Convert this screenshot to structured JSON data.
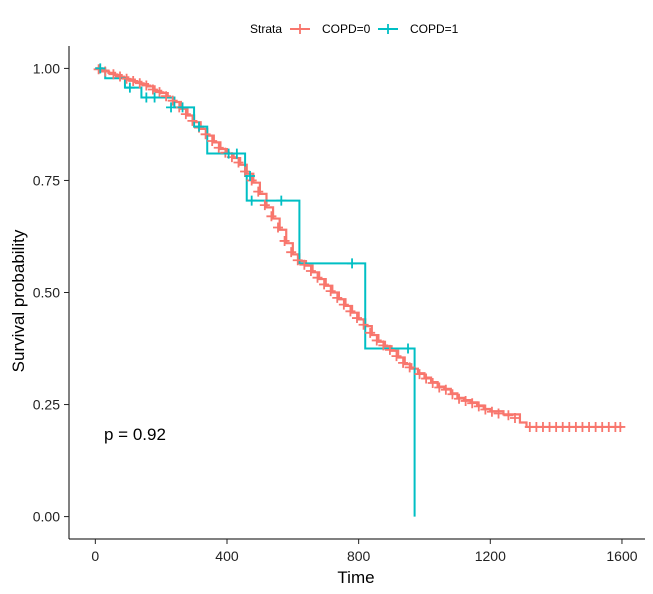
{
  "chart_data": {
    "type": "line",
    "title": "",
    "xlabel": "Time",
    "ylabel": "Survival probability",
    "xlim": [
      -80,
      1670
    ],
    "ylim": [
      -0.05,
      1.05
    ],
    "xticks": [
      0,
      400,
      800,
      1200,
      1600
    ],
    "yticks": [
      0.0,
      0.25,
      0.5,
      0.75,
      1.0
    ],
    "xtick_labels": [
      "0",
      "400",
      "800",
      "1200",
      "1600"
    ],
    "ytick_labels": [
      "0.00",
      "0.25",
      "0.50",
      "0.75",
      "1.00"
    ],
    "grid": false,
    "legend": {
      "position": "top",
      "title": "Strata",
      "entries": [
        "COPD=0",
        "COPD=1"
      ]
    },
    "annotation": {
      "text": "p = 0.92",
      "x": 50,
      "y": 0.195
    },
    "series": [
      {
        "name": "COPD=0",
        "color": "#F8766D",
        "step": true,
        "points": [
          [
            0,
            1.0
          ],
          [
            20,
            0.995
          ],
          [
            40,
            0.99
          ],
          [
            60,
            0.985
          ],
          [
            80,
            0.98
          ],
          [
            100,
            0.975
          ],
          [
            120,
            0.97
          ],
          [
            140,
            0.965
          ],
          [
            160,
            0.96
          ],
          [
            180,
            0.95
          ],
          [
            200,
            0.945
          ],
          [
            220,
            0.935
          ],
          [
            240,
            0.925
          ],
          [
            260,
            0.91
          ],
          [
            280,
            0.895
          ],
          [
            300,
            0.88
          ],
          [
            320,
            0.865
          ],
          [
            340,
            0.85
          ],
          [
            360,
            0.835
          ],
          [
            380,
            0.82
          ],
          [
            400,
            0.81
          ],
          [
            420,
            0.8
          ],
          [
            440,
            0.785
          ],
          [
            460,
            0.765
          ],
          [
            480,
            0.745
          ],
          [
            500,
            0.72
          ],
          [
            520,
            0.69
          ],
          [
            540,
            0.665
          ],
          [
            560,
            0.64
          ],
          [
            580,
            0.61
          ],
          [
            600,
            0.585
          ],
          [
            620,
            0.57
          ],
          [
            640,
            0.56
          ],
          [
            660,
            0.545
          ],
          [
            680,
            0.53
          ],
          [
            700,
            0.515
          ],
          [
            720,
            0.5
          ],
          [
            740,
            0.485
          ],
          [
            760,
            0.47
          ],
          [
            780,
            0.455
          ],
          [
            800,
            0.44
          ],
          [
            820,
            0.425
          ],
          [
            840,
            0.405
          ],
          [
            860,
            0.39
          ],
          [
            880,
            0.38
          ],
          [
            900,
            0.37
          ],
          [
            920,
            0.355
          ],
          [
            940,
            0.34
          ],
          [
            960,
            0.33
          ],
          [
            980,
            0.32
          ],
          [
            1000,
            0.31
          ],
          [
            1020,
            0.3
          ],
          [
            1040,
            0.29
          ],
          [
            1060,
            0.285
          ],
          [
            1080,
            0.275
          ],
          [
            1100,
            0.265
          ],
          [
            1120,
            0.26
          ],
          [
            1140,
            0.255
          ],
          [
            1160,
            0.248
          ],
          [
            1180,
            0.24
          ],
          [
            1200,
            0.235
          ],
          [
            1240,
            0.228
          ],
          [
            1290,
            0.21
          ],
          [
            1310,
            0.2
          ],
          [
            1600,
            0.2
          ]
        ],
        "censors": [
          [
            10,
            0.998
          ],
          [
            30,
            0.993
          ],
          [
            55,
            0.987
          ],
          [
            75,
            0.982
          ],
          [
            95,
            0.977
          ],
          [
            115,
            0.972
          ],
          [
            135,
            0.967
          ],
          [
            155,
            0.962
          ],
          [
            175,
            0.953
          ],
          [
            195,
            0.947
          ],
          [
            215,
            0.938
          ],
          [
            235,
            0.928
          ],
          [
            255,
            0.913
          ],
          [
            275,
            0.898
          ],
          [
            295,
            0.883
          ],
          [
            315,
            0.868
          ],
          [
            335,
            0.853
          ],
          [
            355,
            0.838
          ],
          [
            375,
            0.823
          ],
          [
            395,
            0.812
          ],
          [
            415,
            0.802
          ],
          [
            435,
            0.79
          ],
          [
            455,
            0.77
          ],
          [
            475,
            0.75
          ],
          [
            495,
            0.725
          ],
          [
            515,
            0.695
          ],
          [
            535,
            0.67
          ],
          [
            555,
            0.645
          ],
          [
            575,
            0.615
          ],
          [
            595,
            0.59
          ],
          [
            615,
            0.572
          ],
          [
            635,
            0.562
          ],
          [
            655,
            0.548
          ],
          [
            675,
            0.533
          ],
          [
            695,
            0.518
          ],
          [
            715,
            0.503
          ],
          [
            735,
            0.488
          ],
          [
            755,
            0.473
          ],
          [
            775,
            0.458
          ],
          [
            795,
            0.443
          ],
          [
            815,
            0.428
          ],
          [
            835,
            0.41
          ],
          [
            855,
            0.393
          ],
          [
            875,
            0.382
          ],
          [
            895,
            0.372
          ],
          [
            915,
            0.358
          ],
          [
            935,
            0.343
          ],
          [
            955,
            0.333
          ],
          [
            985,
            0.318
          ],
          [
            1005,
            0.308
          ],
          [
            1025,
            0.298
          ],
          [
            1045,
            0.288
          ],
          [
            1065,
            0.283
          ],
          [
            1085,
            0.273
          ],
          [
            1105,
            0.263
          ],
          [
            1125,
            0.258
          ],
          [
            1145,
            0.253
          ],
          [
            1165,
            0.246
          ],
          [
            1185,
            0.239
          ],
          [
            1205,
            0.234
          ],
          [
            1225,
            0.23
          ],
          [
            1255,
            0.226
          ],
          [
            1275,
            0.22
          ],
          [
            1320,
            0.2
          ],
          [
            1340,
            0.2
          ],
          [
            1360,
            0.2
          ],
          [
            1380,
            0.2
          ],
          [
            1400,
            0.2
          ],
          [
            1420,
            0.2
          ],
          [
            1440,
            0.2
          ],
          [
            1460,
            0.2
          ],
          [
            1480,
            0.2
          ],
          [
            1500,
            0.2
          ],
          [
            1520,
            0.2
          ],
          [
            1540,
            0.2
          ],
          [
            1560,
            0.2
          ],
          [
            1580,
            0.2
          ],
          [
            1595,
            0.2
          ]
        ]
      },
      {
        "name": "COPD=1",
        "color": "#00BFC4",
        "step": true,
        "points": [
          [
            0,
            1.0
          ],
          [
            30,
            0.978
          ],
          [
            90,
            0.957
          ],
          [
            140,
            0.935
          ],
          [
            240,
            0.913
          ],
          [
            300,
            0.87
          ],
          [
            340,
            0.81
          ],
          [
            455,
            0.76
          ],
          [
            460,
            0.705
          ],
          [
            620,
            0.565
          ],
          [
            820,
            0.375
          ],
          [
            970,
            0.0
          ]
        ],
        "censors": [
          [
            15,
            1.0
          ],
          [
            105,
            0.957
          ],
          [
            155,
            0.935
          ],
          [
            180,
            0.935
          ],
          [
            230,
            0.913
          ],
          [
            265,
            0.913
          ],
          [
            315,
            0.87
          ],
          [
            405,
            0.81
          ],
          [
            430,
            0.81
          ],
          [
            470,
            0.76
          ],
          [
            475,
            0.705
          ],
          [
            565,
            0.705
          ],
          [
            780,
            0.565
          ],
          [
            950,
            0.375
          ]
        ]
      }
    ]
  }
}
